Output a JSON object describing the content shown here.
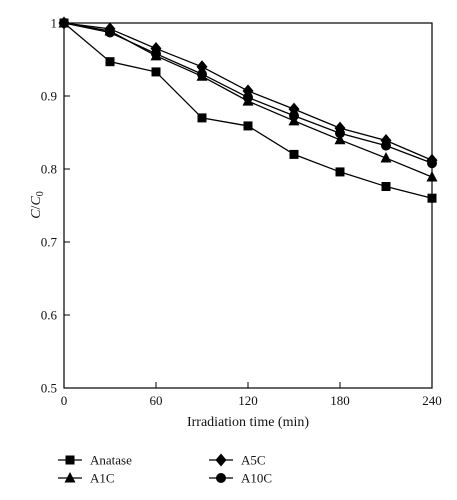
{
  "chart_data": {
    "type": "line",
    "title": "",
    "xlabel": "Irradiation time (min)",
    "ylabel_main": "C",
    "ylabel_sep": "/",
    "ylabel_denominator": "C",
    "ylabel_subscript": "0",
    "xlim": [
      0,
      240
    ],
    "ylim": [
      0.5,
      1.0
    ],
    "xticks": [
      0,
      60,
      120,
      180,
      240
    ],
    "yticks": [
      0.5,
      0.6,
      0.7,
      0.8,
      0.9,
      1
    ],
    "ytick_labels": [
      "0.5",
      "0.6",
      "0.7",
      "0.8",
      "0.9",
      "1"
    ],
    "grid": false,
    "legend_position": "bottom",
    "x": [
      0,
      30,
      60,
      90,
      120,
      150,
      180,
      210,
      240
    ],
    "series": [
      {
        "name": "Anatase",
        "marker": "square",
        "values": [
          1.0,
          0.947,
          0.933,
          0.87,
          0.859,
          0.82,
          0.796,
          0.776,
          0.76
        ]
      },
      {
        "name": "A1C",
        "marker": "triangle",
        "values": [
          1.0,
          0.989,
          0.955,
          0.927,
          0.893,
          0.866,
          0.84,
          0.815,
          0.789
        ]
      },
      {
        "name": "A5C",
        "marker": "diamond",
        "values": [
          1.0,
          0.992,
          0.965,
          0.94,
          0.907,
          0.882,
          0.856,
          0.839,
          0.812
        ]
      },
      {
        "name": "A10C",
        "marker": "circle",
        "values": [
          1.0,
          0.987,
          0.958,
          0.93,
          0.898,
          0.873,
          0.849,
          0.832,
          0.808
        ]
      }
    ]
  }
}
